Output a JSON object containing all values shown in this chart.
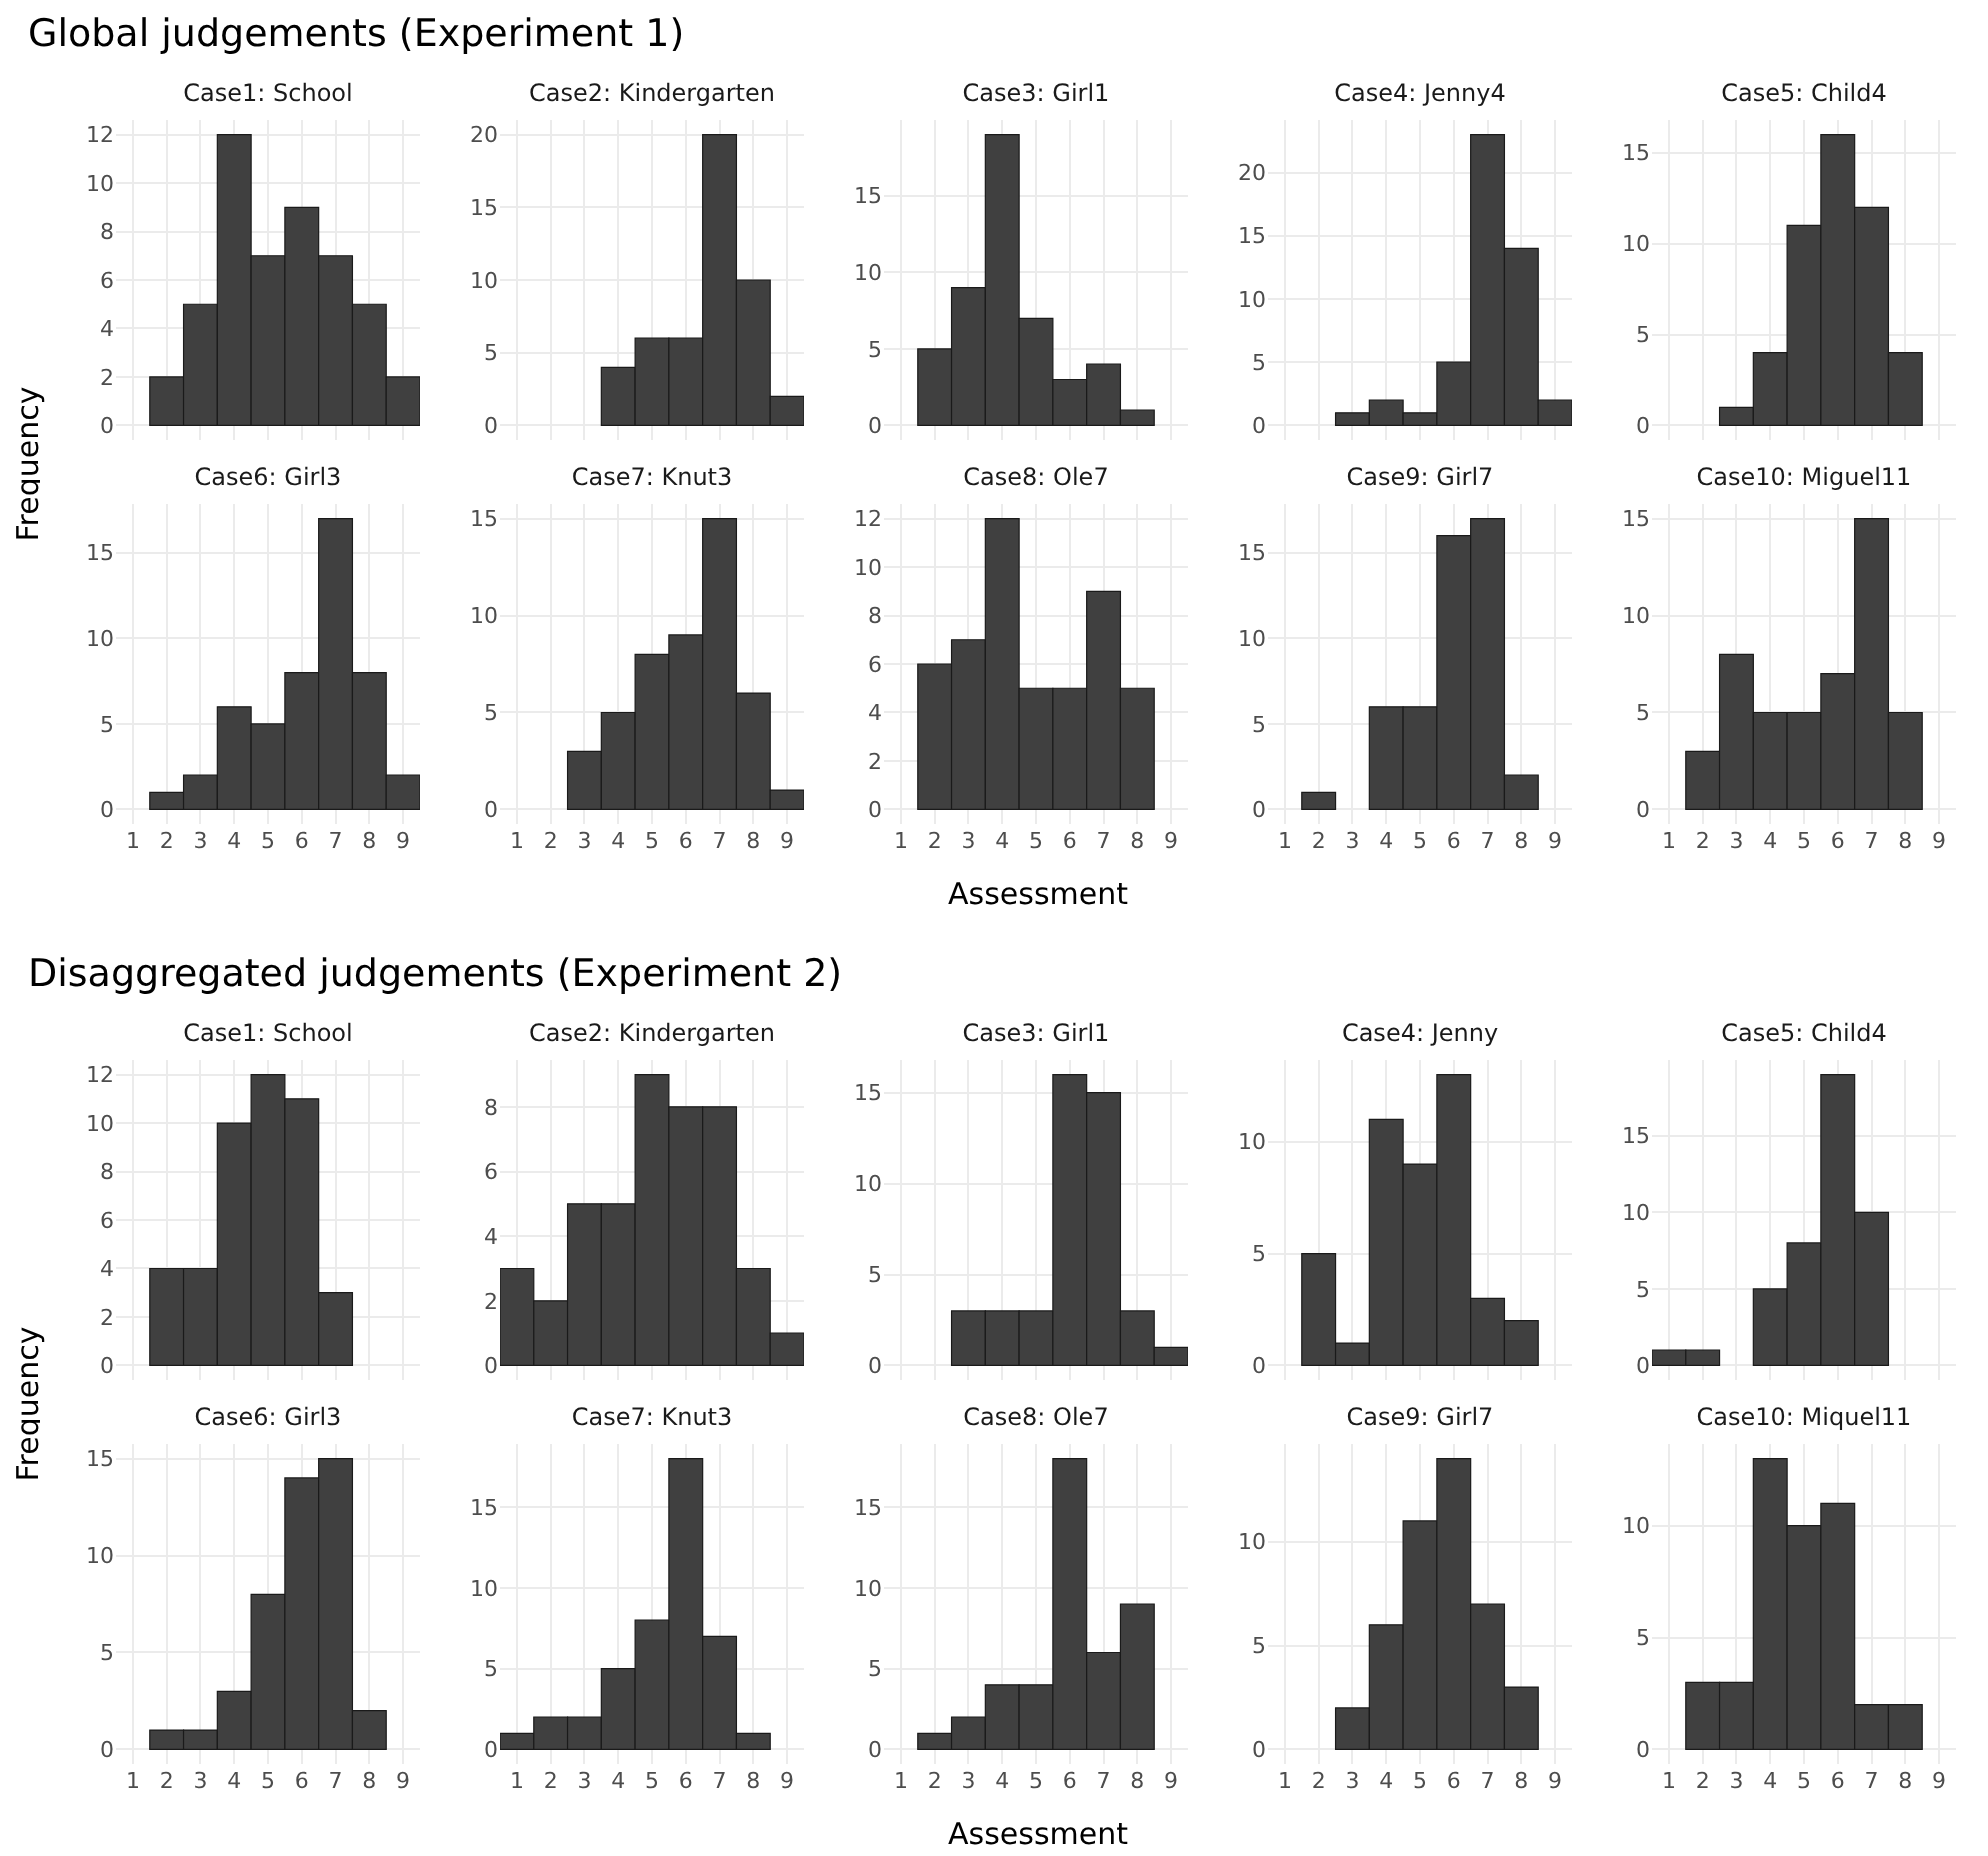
{
  "chart_data": [
    {
      "type": "bar",
      "title": "Case1: School",
      "annotations": [
        "Global judgements (Experiment 1)"
      ],
      "ylabel": "Frequency",
      "x": [
        2,
        3,
        4,
        5,
        6,
        7,
        8,
        9
      ],
      "values": [
        2,
        5,
        12,
        7,
        9,
        7,
        5,
        2
      ],
      "color": "#404040",
      "xlim": [
        0.5,
        9.5
      ],
      "xticks": [
        1,
        2,
        3,
        4,
        5,
        6,
        7,
        8,
        9
      ],
      "ylim": [
        -0.6,
        12.6
      ],
      "yticks": [
        0,
        2,
        4,
        6,
        8,
        10,
        12
      ],
      "grid": true,
      "tick_labels": "y"
    },
    {
      "type": "bar",
      "title": "Case2: Kindergarten",
      "x": [
        4,
        5,
        6,
        7,
        8,
        9
      ],
      "values": [
        4,
        6,
        6,
        20,
        10,
        2
      ],
      "color": "#404040",
      "xlim": [
        0.5,
        9.5
      ],
      "xticks": [
        1,
        2,
        3,
        4,
        5,
        6,
        7,
        8,
        9
      ],
      "ylim": [
        -1,
        21
      ],
      "yticks": [
        0,
        5,
        10,
        15,
        20
      ],
      "grid": true,
      "tick_labels": "y"
    },
    {
      "type": "bar",
      "title": "Case3: Girl1",
      "x": [
        2,
        3,
        4,
        5,
        6,
        7,
        8
      ],
      "values": [
        5,
        9,
        19,
        7,
        3,
        4,
        1
      ],
      "color": "#404040",
      "xlim": [
        0.5,
        9.5
      ],
      "xticks": [
        1,
        2,
        3,
        4,
        5,
        6,
        7,
        8,
        9
      ],
      "ylim": [
        -0.95,
        19.95
      ],
      "yticks": [
        0,
        5,
        10,
        15
      ],
      "grid": true,
      "tick_labels": "y"
    },
    {
      "type": "bar",
      "title": "Case4: Jenny4",
      "x": [
        3,
        4,
        5,
        6,
        7,
        8,
        9
      ],
      "values": [
        1,
        2,
        1,
        5,
        23,
        14,
        2
      ],
      "color": "#404040",
      "xlim": [
        0.5,
        9.5
      ],
      "xticks": [
        1,
        2,
        3,
        4,
        5,
        6,
        7,
        8,
        9
      ],
      "ylim": [
        -1.15,
        24.15
      ],
      "yticks": [
        0,
        5,
        10,
        15,
        20
      ],
      "grid": true,
      "tick_labels": "y"
    },
    {
      "type": "bar",
      "title": "Case5: Child4",
      "x": [
        3,
        4,
        5,
        6,
        7,
        8
      ],
      "values": [
        1,
        4,
        11,
        16,
        12,
        4
      ],
      "color": "#404040",
      "xlim": [
        0.5,
        9.5
      ],
      "xticks": [
        1,
        2,
        3,
        4,
        5,
        6,
        7,
        8,
        9
      ],
      "ylim": [
        -0.8,
        16.8
      ],
      "yticks": [
        0,
        5,
        10,
        15
      ],
      "grid": true,
      "tick_labels": "y"
    },
    {
      "type": "bar",
      "title": "Case6: Girl3",
      "x": [
        2,
        3,
        4,
        5,
        6,
        7,
        8,
        9
      ],
      "values": [
        1,
        2,
        6,
        5,
        8,
        17,
        8,
        2
      ],
      "color": "#404040",
      "xlim": [
        0.5,
        9.5
      ],
      "xticks": [
        1,
        2,
        3,
        4,
        5,
        6,
        7,
        8,
        9
      ],
      "ylim": [
        -0.85,
        17.85
      ],
      "yticks": [
        0,
        5,
        10,
        15
      ],
      "grid": true
    },
    {
      "type": "bar",
      "title": "Case7: Knut3",
      "x": [
        3,
        4,
        5,
        6,
        7,
        8,
        9
      ],
      "values": [
        3,
        5,
        8,
        9,
        15,
        6,
        1
      ],
      "color": "#404040",
      "xlim": [
        0.5,
        9.5
      ],
      "xticks": [
        1,
        2,
        3,
        4,
        5,
        6,
        7,
        8,
        9
      ],
      "ylim": [
        -0.75,
        15.75
      ],
      "yticks": [
        0,
        5,
        10,
        15
      ],
      "grid": true
    },
    {
      "type": "bar",
      "title": "Case8: Ole7",
      "xlabel": "Assessment",
      "x": [
        2,
        3,
        4,
        5,
        6,
        7,
        8
      ],
      "values": [
        6,
        7,
        12,
        5,
        5,
        9,
        5
      ],
      "color": "#404040",
      "xlim": [
        0.5,
        9.5
      ],
      "xticks": [
        1,
        2,
        3,
        4,
        5,
        6,
        7,
        8,
        9
      ],
      "ylim": [
        -0.6,
        12.6
      ],
      "yticks": [
        0,
        2,
        4,
        6,
        8,
        10,
        12
      ],
      "grid": true
    },
    {
      "type": "bar",
      "title": "Case9: Girl7",
      "x": [
        2,
        3,
        4,
        5,
        6,
        7,
        8
      ],
      "values": [
        1,
        null,
        6,
        6,
        16,
        17,
        2
      ],
      "color": "#404040",
      "xlim": [
        0.5,
        9.5
      ],
      "xticks": [
        1,
        2,
        3,
        4,
        5,
        6,
        7,
        8,
        9
      ],
      "ylim": [
        -0.85,
        17.85
      ],
      "yticks": [
        0,
        5,
        10,
        15
      ],
      "grid": true
    },
    {
      "type": "bar",
      "title": "Case10: Miguel11",
      "x": [
        2,
        3,
        4,
        5,
        6,
        7,
        8
      ],
      "values": [
        3,
        8,
        5,
        5,
        7,
        15,
        5
      ],
      "color": "#404040",
      "xlim": [
        0.5,
        9.5
      ],
      "xticks": [
        1,
        2,
        3,
        4,
        5,
        6,
        7,
        8,
        9
      ],
      "ylim": [
        -0.75,
        15.75
      ],
      "yticks": [
        0,
        5,
        10,
        15
      ],
      "grid": true
    },
    {
      "type": "bar",
      "title": "Case1: School",
      "annotations": [
        "Disaggregated judgements (Experiment 2)"
      ],
      "ylabel": "Frequency",
      "x": [
        2,
        3,
        4,
        5,
        6,
        7
      ],
      "values": [
        4,
        4,
        10,
        12,
        11,
        3
      ],
      "color": "#404040",
      "xlim": [
        0.5,
        9.5
      ],
      "xticks": [
        1,
        2,
        3,
        4,
        5,
        6,
        7,
        8,
        9
      ],
      "ylim": [
        -0.6,
        12.6
      ],
      "yticks": [
        0,
        2,
        4,
        6,
        8,
        10,
        12
      ],
      "grid": true,
      "tick_labels": "y"
    },
    {
      "type": "bar",
      "title": "Case2: Kindergarten",
      "x": [
        1,
        2,
        3,
        4,
        5,
        6,
        7,
        8,
        9
      ],
      "values": [
        3,
        2,
        5,
        5,
        9,
        8,
        8,
        3,
        1
      ],
      "color": "#404040",
      "xlim": [
        0.5,
        9.5
      ],
      "xticks": [
        1,
        2,
        3,
        4,
        5,
        6,
        7,
        8,
        9
      ],
      "ylim": [
        -0.45,
        9.45
      ],
      "yticks": [
        0,
        2,
        4,
        6,
        8
      ],
      "grid": true,
      "tick_labels": "y"
    },
    {
      "type": "bar",
      "title": "Case3: Girl1",
      "x": [
        3,
        4,
        5,
        6,
        7,
        8,
        9
      ],
      "values": [
        3,
        3,
        3,
        16,
        15,
        3,
        1
      ],
      "color": "#404040",
      "xlim": [
        0.5,
        9.5
      ],
      "xticks": [
        1,
        2,
        3,
        4,
        5,
        6,
        7,
        8,
        9
      ],
      "ylim": [
        -0.8,
        16.8
      ],
      "yticks": [
        0,
        5,
        10,
        15
      ],
      "grid": true,
      "tick_labels": "y"
    },
    {
      "type": "bar",
      "title": "Case4: Jenny",
      "x": [
        2,
        3,
        4,
        5,
        6,
        7,
        8
      ],
      "values": [
        5,
        1,
        11,
        9,
        13,
        3,
        2
      ],
      "color": "#404040",
      "xlim": [
        0.5,
        9.5
      ],
      "xticks": [
        1,
        2,
        3,
        4,
        5,
        6,
        7,
        8,
        9
      ],
      "ylim": [
        -0.65,
        13.65
      ],
      "yticks": [
        0,
        5,
        10
      ],
      "grid": true,
      "tick_labels": "y"
    },
    {
      "type": "bar",
      "title": "Case5: Child4",
      "x": [
        1,
        2,
        3,
        4,
        5,
        6,
        7
      ],
      "values": [
        1,
        1,
        null,
        5,
        8,
        19,
        10
      ],
      "color": "#404040",
      "xlim": [
        0.5,
        9.5
      ],
      "xticks": [
        1,
        2,
        3,
        4,
        5,
        6,
        7,
        8,
        9
      ],
      "ylim": [
        -0.95,
        19.95
      ],
      "yticks": [
        0,
        5,
        10,
        15
      ],
      "grid": true,
      "tick_labels": "y"
    },
    {
      "type": "bar",
      "title": "Case6: Girl3",
      "x": [
        2,
        3,
        4,
        5,
        6,
        7,
        8
      ],
      "values": [
        1,
        1,
        3,
        8,
        14,
        15,
        2
      ],
      "color": "#404040",
      "xlim": [
        0.5,
        9.5
      ],
      "xticks": [
        1,
        2,
        3,
        4,
        5,
        6,
        7,
        8,
        9
      ],
      "ylim": [
        -0.75,
        15.75
      ],
      "yticks": [
        0,
        5,
        10,
        15
      ],
      "grid": true
    },
    {
      "type": "bar",
      "title": "Case7: Knut3",
      "x": [
        1,
        2,
        3,
        4,
        5,
        6,
        7,
        8
      ],
      "values": [
        1,
        2,
        2,
        5,
        8,
        18,
        7,
        1
      ],
      "color": "#404040",
      "xlim": [
        0.5,
        9.5
      ],
      "xticks": [
        1,
        2,
        3,
        4,
        5,
        6,
        7,
        8,
        9
      ],
      "ylim": [
        -0.9,
        18.9
      ],
      "yticks": [
        0,
        5,
        10,
        15
      ],
      "grid": true
    },
    {
      "type": "bar",
      "title": "Case8: Ole7",
      "xlabel": "Assessment",
      "x": [
        2,
        3,
        4,
        5,
        6,
        7,
        8
      ],
      "values": [
        1,
        2,
        4,
        4,
        18,
        6,
        9
      ],
      "color": "#404040",
      "xlim": [
        0.5,
        9.5
      ],
      "xticks": [
        1,
        2,
        3,
        4,
        5,
        6,
        7,
        8,
        9
      ],
      "ylim": [
        -0.9,
        18.9
      ],
      "yticks": [
        0,
        5,
        10,
        15
      ],
      "grid": true
    },
    {
      "type": "bar",
      "title": "Case9: Girl7",
      "x": [
        3,
        4,
        5,
        6,
        7,
        8
      ],
      "values": [
        2,
        6,
        11,
        14,
        7,
        3
      ],
      "color": "#404040",
      "xlim": [
        0.5,
        9.5
      ],
      "xticks": [
        1,
        2,
        3,
        4,
        5,
        6,
        7,
        8,
        9
      ],
      "ylim": [
        -0.7,
        14.7
      ],
      "yticks": [
        0,
        5,
        10
      ],
      "grid": true
    },
    {
      "type": "bar",
      "title": "Case10: Miquel11",
      "x": [
        2,
        3,
        4,
        5,
        6,
        7,
        8
      ],
      "values": [
        3,
        3,
        13,
        10,
        11,
        2,
        2
      ],
      "color": "#404040",
      "xlim": [
        0.5,
        9.5
      ],
      "xticks": [
        1,
        2,
        3,
        4,
        5,
        6,
        7,
        8,
        9
      ],
      "ylim": [
        -0.65,
        13.65
      ],
      "yticks": [
        0,
        5,
        10
      ],
      "grid": true
    }
  ]
}
